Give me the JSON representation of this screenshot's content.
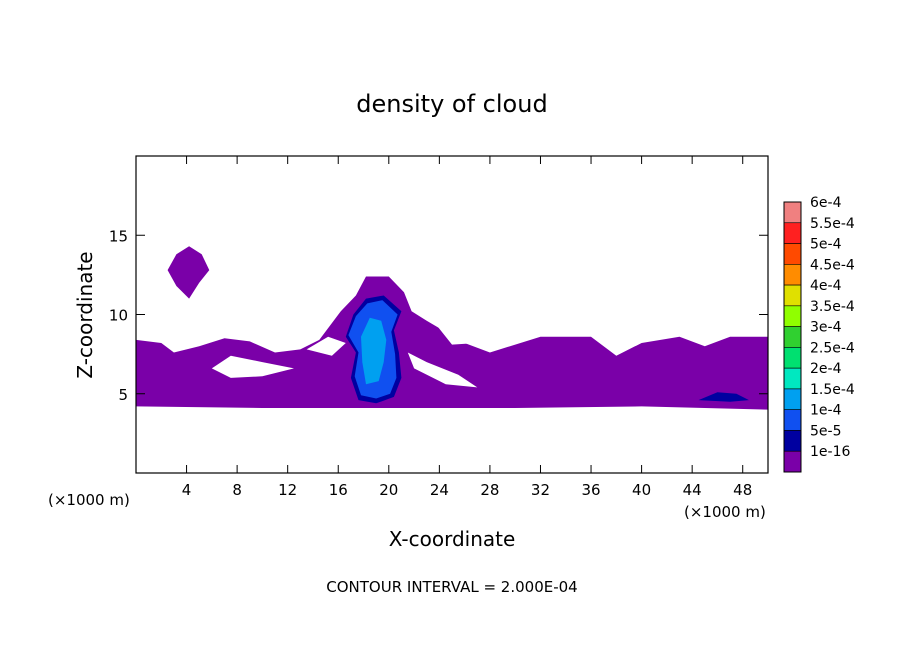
{
  "chart_data": {
    "type": "heatmap",
    "title": "density of cloud",
    "xlabel": "X-coordinate",
    "ylabel": "Z-coordinate",
    "x_unit_left": "(×1000 m)",
    "x_unit_right": "(×1000 m)",
    "xlim": [
      0,
      50
    ],
    "ylim": [
      0,
      20
    ],
    "x_ticks": [
      4,
      8,
      12,
      16,
      20,
      24,
      28,
      32,
      36,
      40,
      44,
      48
    ],
    "y_ticks": [
      5,
      10,
      15
    ],
    "footer": "CONTOUR INTERVAL = 2.000E-04",
    "colorbar": {
      "labels": [
        "6e-4",
        "5.5e-4",
        "5e-4",
        "4.5e-4",
        "4e-4",
        "3.5e-4",
        "3e-4",
        "2.5e-4",
        "2e-4",
        "1.5e-4",
        "1e-4",
        "5e-5",
        "1e-16"
      ],
      "colors": [
        "#f08080",
        "#ff2020",
        "#ff4a00",
        "#ff8c00",
        "#e0e000",
        "#90ff00",
        "#30d030",
        "#00e070",
        "#00e8c0",
        "#00a0f0",
        "#1050f0",
        "#0000a0",
        "#7a00a8"
      ]
    },
    "regions": [
      {
        "level": "1e-16",
        "points": [
          [
            0,
            4.2
          ],
          [
            0,
            8.4
          ],
          [
            2,
            8.2
          ],
          [
            3,
            7.6
          ],
          [
            5,
            8
          ],
          [
            7,
            8.5
          ],
          [
            9,
            8.3
          ],
          [
            11,
            7.6
          ],
          [
            13,
            7.8
          ],
          [
            14.5,
            8.4
          ],
          [
            16.2,
            10.2
          ],
          [
            17.4,
            11.2
          ],
          [
            18.2,
            12.4
          ],
          [
            20,
            12.4
          ],
          [
            21.2,
            11.4
          ],
          [
            21.8,
            10.2
          ],
          [
            23,
            9.6
          ],
          [
            26,
            8.2
          ],
          [
            28,
            7.6
          ],
          [
            32,
            8.6
          ],
          [
            36,
            8.6
          ],
          [
            38,
            7.4
          ],
          [
            40,
            8.2
          ],
          [
            43,
            8.6
          ],
          [
            45,
            8
          ],
          [
            47,
            8.6
          ],
          [
            50,
            8.6
          ],
          [
            50,
            4
          ],
          [
            40,
            4.2
          ],
          [
            30,
            4.1
          ],
          [
            20,
            4.1
          ],
          [
            10,
            4.1
          ]
        ]
      },
      {
        "level": "1e-16",
        "points": [
          [
            2.5,
            12.8
          ],
          [
            3.2,
            13.8
          ],
          [
            4.2,
            14.3
          ],
          [
            5.2,
            13.8
          ],
          [
            5.8,
            12.8
          ],
          [
            5,
            12
          ],
          [
            4.2,
            11
          ],
          [
            3.2,
            11.8
          ]
        ]
      },
      {
        "level": "5e-5",
        "points": [
          [
            16.6,
            8.6
          ],
          [
            17.2,
            10
          ],
          [
            18.2,
            11
          ],
          [
            19.6,
            11.2
          ],
          [
            21,
            10.2
          ],
          [
            20.4,
            9
          ],
          [
            20.8,
            7.6
          ],
          [
            21,
            6
          ],
          [
            20.4,
            4.8
          ],
          [
            19,
            4.4
          ],
          [
            17.6,
            4.6
          ],
          [
            17,
            6
          ],
          [
            17.4,
            7.6
          ]
        ]
      },
      {
        "level": "1e-4",
        "points": [
          [
            16.8,
            8.7
          ],
          [
            17.4,
            9.9
          ],
          [
            18.3,
            10.7
          ],
          [
            19.5,
            10.9
          ],
          [
            20.7,
            10
          ],
          [
            20.2,
            8.9
          ],
          [
            20.5,
            7.5
          ],
          [
            20.6,
            6
          ],
          [
            20.1,
            5
          ],
          [
            19,
            4.7
          ],
          [
            17.8,
            4.9
          ],
          [
            17.3,
            6.1
          ],
          [
            17.6,
            7.6
          ]
        ]
      },
      {
        "level": "1.5e-4",
        "points": [
          [
            17.8,
            8.6
          ],
          [
            18.5,
            9.8
          ],
          [
            19.4,
            9.6
          ],
          [
            19.8,
            8.4
          ],
          [
            19.6,
            7
          ],
          [
            19.2,
            5.8
          ],
          [
            18.2,
            5.6
          ],
          [
            17.9,
            7
          ]
        ]
      },
      {
        "level": "5e-5",
        "points": [
          [
            44.5,
            4.6
          ],
          [
            46,
            5.1
          ],
          [
            47.5,
            5
          ],
          [
            48.5,
            4.6
          ],
          [
            47,
            4.5
          ]
        ]
      }
    ],
    "gaps": [
      {
        "points": [
          [
            6,
            6.6
          ],
          [
            7.5,
            7.4
          ],
          [
            10,
            7
          ],
          [
            12.5,
            6.6
          ],
          [
            10,
            6.1
          ],
          [
            7.5,
            6
          ]
        ]
      },
      {
        "points": [
          [
            13.5,
            7.8
          ],
          [
            15.2,
            8.6
          ],
          [
            16.6,
            8.2
          ],
          [
            15.5,
            7.4
          ]
        ]
      },
      {
        "points": [
          [
            21.5,
            7.6
          ],
          [
            23,
            7
          ],
          [
            25.5,
            6.2
          ],
          [
            27,
            5.4
          ],
          [
            24.5,
            5.6
          ],
          [
            22,
            6.6
          ]
        ]
      },
      {
        "points": [
          [
            23.5,
            9.6
          ],
          [
            25.5,
            8.8
          ],
          [
            27,
            8.2
          ],
          [
            25,
            8.1
          ]
        ]
      }
    ]
  }
}
